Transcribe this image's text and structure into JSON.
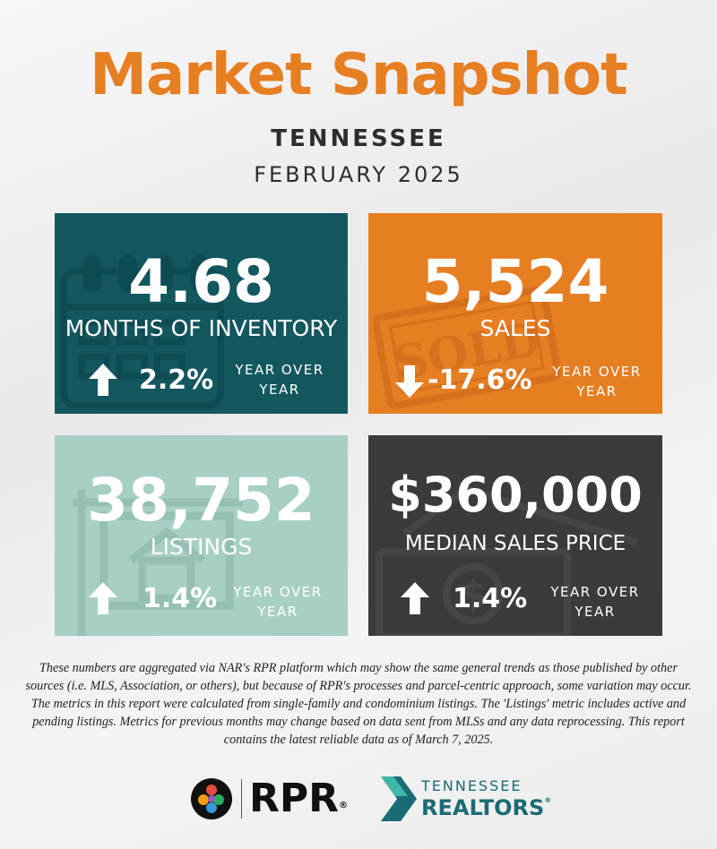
{
  "header": {
    "title": "Market Snapshot",
    "state": "TENNESSEE",
    "period": "FEBRUARY 2025"
  },
  "cards": [
    {
      "value": "4.68",
      "label": "MONTHS OF INVENTORY",
      "change": "2.2%",
      "direction": "up",
      "yoy_line1": "YEAR OVER",
      "yoy_line2": "YEAR",
      "color": "#13575f",
      "icon": "calendar-icon"
    },
    {
      "value": "5,524",
      "label": "SALES",
      "change": "-17.6%",
      "direction": "down",
      "yoy_line1": "YEAR OVER",
      "yoy_line2": "YEAR",
      "color": "#e67e22",
      "icon": "sold-stamp-icon"
    },
    {
      "value": "38,752",
      "label": "LISTINGS",
      "change": "1.4%",
      "direction": "up",
      "yoy_line1": "YEAR OVER",
      "yoy_line2": "YEAR",
      "color": "#a8cfc5",
      "icon": "house-sign-icon"
    },
    {
      "value": "$360,000",
      "label": "MEDIAN SALES PRICE",
      "change": "1.4%",
      "direction": "up",
      "yoy_line1": "YEAR OVER",
      "yoy_line2": "YEAR",
      "color": "#3a3b3b",
      "icon": "dollar-bill-icon"
    }
  ],
  "footnote": "These numbers are aggregated via NAR's RPR platform which may show the same general trends as those published by other sources (i.e. MLS, Association, or others), but because of RPR's processes and parcel-centric approach, some variation may occur. The metrics in this report were calculated from single-family and condominium listings. The 'Listings' metric includes active and pending listings. Metrics for previous months may change based on data sent from MLSs and any data reprocessing. This report contains the latest reliable data as of March 7, 2025.",
  "logos": {
    "rpr_text": "RPR",
    "rpr_mark": "®",
    "tn_line1": "TENNESSEE",
    "tn_line2": "REALTORS",
    "tn_mark": "®"
  }
}
